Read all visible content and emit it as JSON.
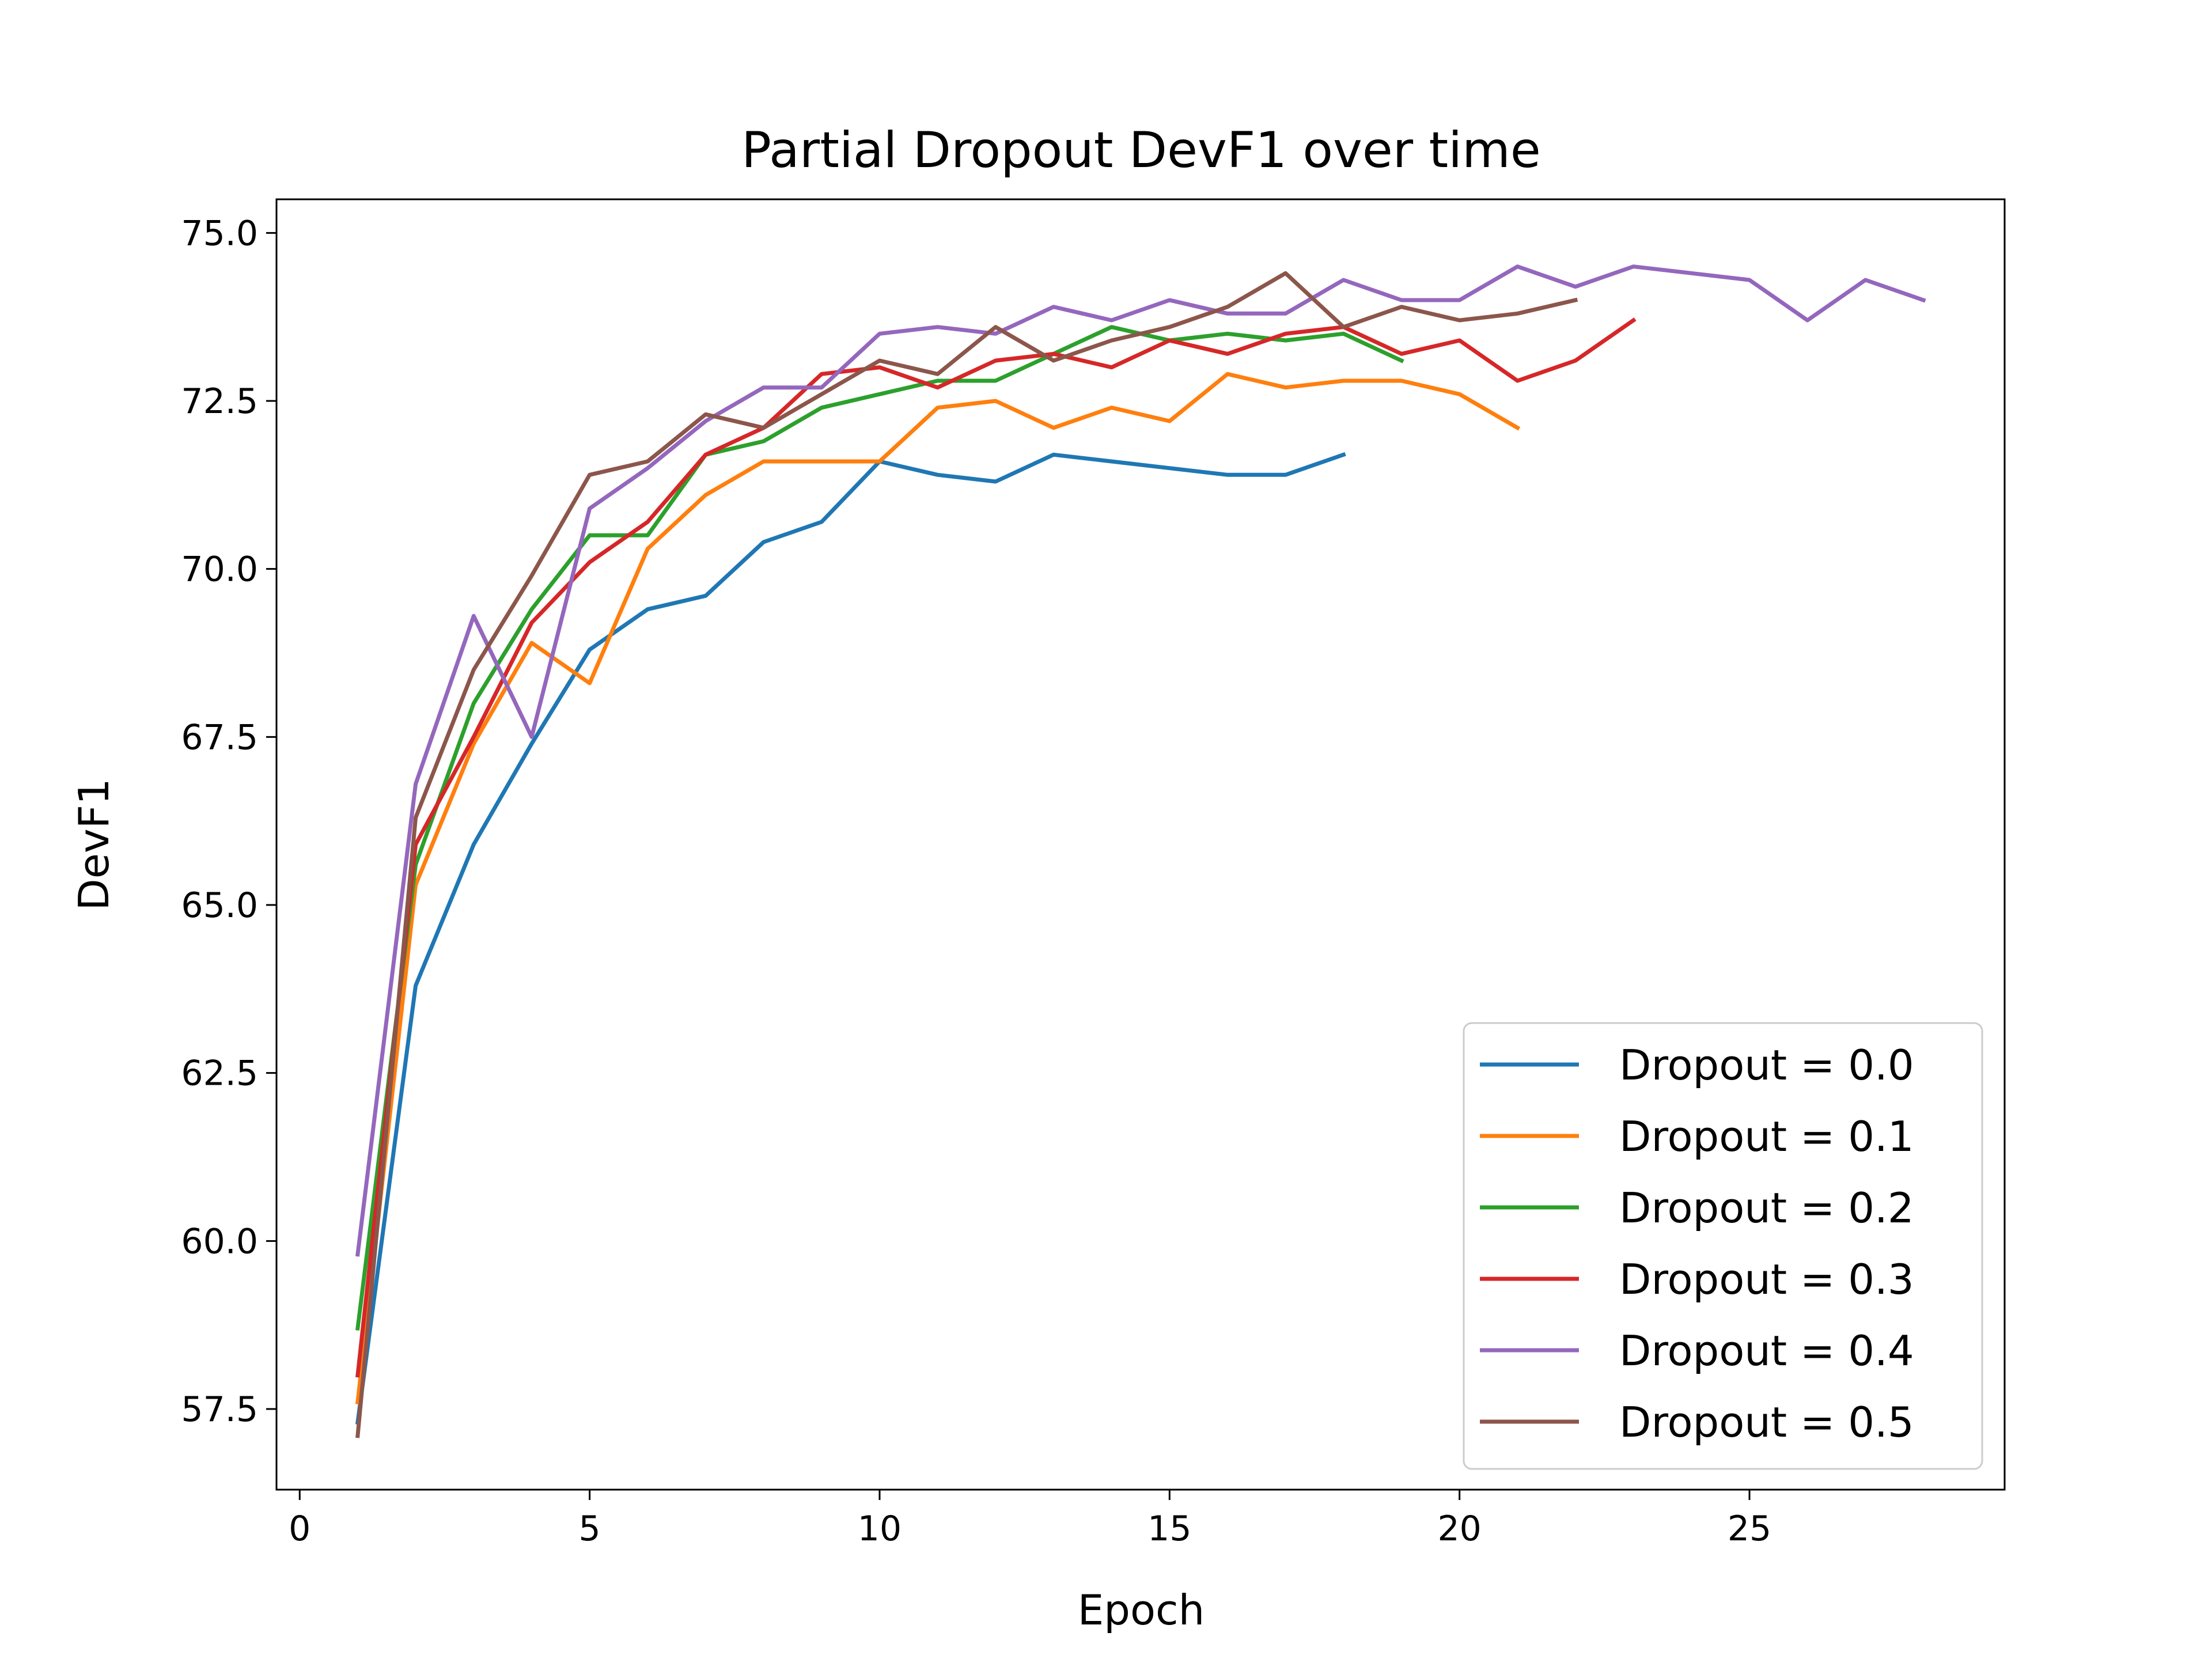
{
  "chart_data": {
    "type": "line",
    "title": "Partial Dropout DevF1 over time",
    "xlabel": "Epoch",
    "ylabel": "DevF1",
    "xlim": [
      -0.4,
      29.4
    ],
    "ylim": [
      56.3,
      75.5
    ],
    "xticks": [
      0,
      5,
      10,
      15,
      20,
      25
    ],
    "yticks": [
      57.5,
      60.0,
      62.5,
      65.0,
      67.5,
      70.0,
      72.5,
      75.0
    ],
    "grid": false,
    "legend_position": "lower-right",
    "series": [
      {
        "name": "Dropout = 0.0",
        "color": "#1f77b4",
        "x": [
          1,
          2,
          3,
          4,
          5,
          6,
          7,
          8,
          9,
          10,
          11,
          12,
          13,
          14,
          15,
          16,
          17,
          18
        ],
        "y": [
          57.3,
          63.8,
          65.9,
          67.4,
          68.8,
          69.4,
          69.6,
          70.4,
          70.7,
          71.6,
          71.4,
          71.3,
          71.7,
          71.6,
          71.5,
          71.4,
          71.4,
          71.7
        ]
      },
      {
        "name": "Dropout = 0.1",
        "color": "#ff7f0e",
        "x": [
          1,
          2,
          3,
          4,
          5,
          6,
          7,
          8,
          9,
          10,
          11,
          12,
          13,
          14,
          15,
          16,
          17,
          18,
          19,
          20,
          21
        ],
        "y": [
          57.6,
          65.3,
          67.4,
          68.9,
          68.3,
          70.3,
          71.1,
          71.6,
          71.6,
          71.6,
          72.4,
          72.5,
          72.1,
          72.4,
          72.2,
          72.9,
          72.7,
          72.8,
          72.8,
          72.6,
          72.1
        ]
      },
      {
        "name": "Dropout = 0.2",
        "color": "#2ca02c",
        "x": [
          1,
          2,
          3,
          4,
          5,
          6,
          7,
          8,
          9,
          10,
          11,
          12,
          13,
          14,
          15,
          16,
          17,
          18,
          19
        ],
        "y": [
          58.7,
          65.6,
          68.0,
          69.4,
          70.5,
          70.5,
          71.7,
          71.9,
          72.4,
          72.6,
          72.8,
          72.8,
          73.2,
          73.6,
          73.4,
          73.5,
          73.4,
          73.5,
          73.1
        ]
      },
      {
        "name": "Dropout = 0.3",
        "color": "#d62728",
        "x": [
          1,
          2,
          3,
          4,
          5,
          6,
          7,
          8,
          9,
          10,
          11,
          12,
          13,
          14,
          15,
          16,
          17,
          18,
          19,
          20,
          21,
          22,
          23
        ],
        "y": [
          58.0,
          65.9,
          67.5,
          69.2,
          70.1,
          70.7,
          71.7,
          72.1,
          72.9,
          73.0,
          72.7,
          73.1,
          73.2,
          73.0,
          73.4,
          73.2,
          73.5,
          73.6,
          73.2,
          73.4,
          72.8,
          73.1,
          73.7
        ]
      },
      {
        "name": "Dropout = 0.4",
        "color": "#9467bd",
        "x": [
          1,
          2,
          3,
          4,
          5,
          6,
          7,
          8,
          9,
          10,
          11,
          12,
          13,
          14,
          15,
          16,
          17,
          18,
          19,
          20,
          21,
          22,
          23,
          24,
          25,
          26,
          27,
          28
        ],
        "y": [
          59.8,
          66.8,
          69.3,
          67.5,
          70.9,
          71.5,
          72.2,
          72.7,
          72.7,
          73.5,
          73.6,
          73.5,
          73.9,
          73.7,
          74.0,
          73.8,
          73.8,
          74.3,
          74.0,
          74.0,
          74.5,
          74.2,
          74.5,
          74.4,
          74.3,
          73.7,
          74.3,
          74.0
        ]
      },
      {
        "name": "Dropout = 0.5",
        "color": "#8c564b",
        "x": [
          1,
          2,
          3,
          4,
          5,
          6,
          7,
          8,
          9,
          10,
          11,
          12,
          13,
          14,
          15,
          16,
          17,
          18,
          19,
          20,
          21,
          22
        ],
        "y": [
          57.1,
          66.3,
          68.5,
          69.9,
          71.4,
          71.6,
          72.3,
          72.1,
          72.6,
          73.1,
          72.9,
          73.6,
          73.1,
          73.4,
          73.6,
          73.9,
          74.4,
          73.6,
          73.9,
          73.7,
          73.8,
          74.0
        ]
      }
    ]
  }
}
